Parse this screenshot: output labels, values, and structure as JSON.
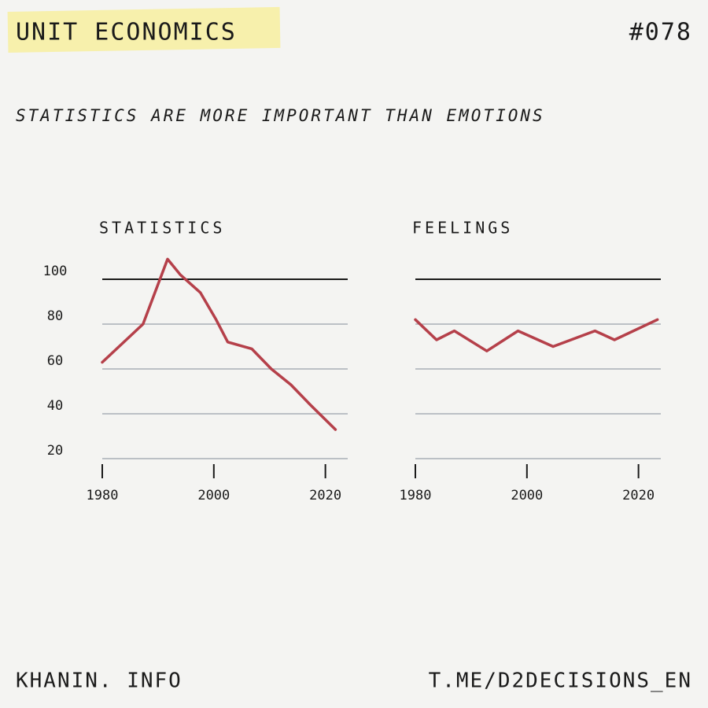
{
  "header": {
    "title": "UNIT ECONOMICS",
    "issue": "#078",
    "subtitle": "STATISTICS ARE MORE IMPORTANT THAN EMOTIONS"
  },
  "footer": {
    "left": "KHANIN. INFO",
    "right": "T.ME/D2DECISIONS_EN"
  },
  "chart_data": [
    {
      "type": "line",
      "title": "STATISTICS",
      "x": [
        1980,
        1987.3,
        1991.7,
        1994,
        1997.6,
        2000.4,
        2002.5,
        2006.8,
        2010.3,
        2013.8,
        2017.3,
        2021.8
      ],
      "series": [
        {
          "color": "#b5404a",
          "values": [
            63,
            80,
            109,
            102,
            94,
            82,
            72,
            69,
            60,
            53,
            44,
            33
          ]
        }
      ],
      "xlim": [
        1980,
        2024
      ],
      "xticks": [
        1980,
        2000,
        2020
      ],
      "ylim": [
        18,
        110
      ],
      "yticks": [
        20,
        40,
        60,
        80,
        100
      ],
      "ytick_labels": true,
      "grid": true
    },
    {
      "type": "line",
      "title": "FEELINGS",
      "x": [
        1980,
        1983.8,
        1987,
        1992.8,
        1998.4,
        2004.7,
        2012.2,
        2015.7,
        2023.4
      ],
      "series": [
        {
          "color": "#b5404a",
          "values": [
            82,
            73,
            77,
            68,
            77,
            70,
            77,
            73,
            82
          ]
        }
      ],
      "xlim": [
        1980,
        2024
      ],
      "xticks": [
        1980,
        2000,
        2020
      ],
      "ylim": [
        18,
        110
      ],
      "yticks": [
        20,
        40,
        60,
        80,
        100
      ],
      "ytick_labels": false,
      "grid": true
    }
  ]
}
